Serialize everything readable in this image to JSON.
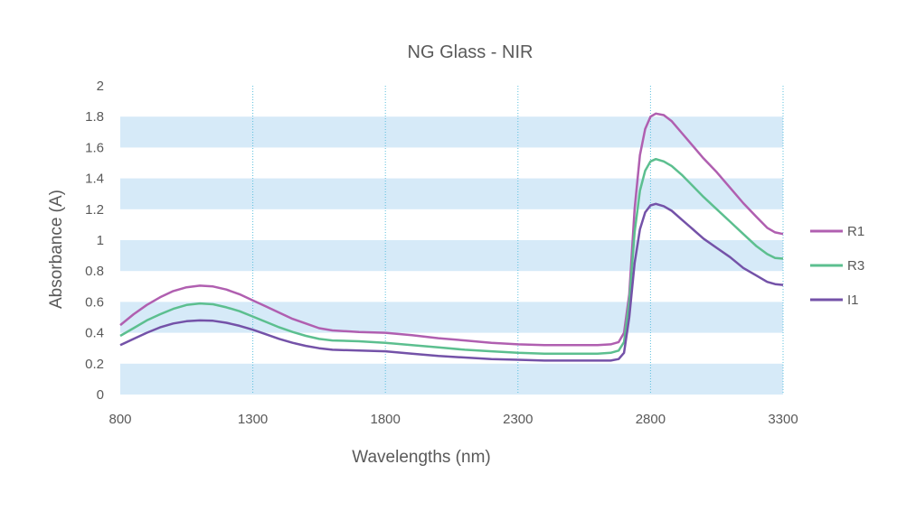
{
  "chart_data": {
    "type": "line",
    "title": "NG Glass - NIR",
    "xlabel": "Wavelengths (nm)",
    "ylabel": "Absorbance (A)",
    "xlim": [
      800,
      3300
    ],
    "ylim": [
      0,
      2
    ],
    "xticks": [
      800,
      1300,
      1800,
      2300,
      2800,
      3300
    ],
    "yticks": [
      "0",
      "0.2",
      "0.4",
      "0.6",
      "0.8",
      "1",
      "1.2",
      "1.4",
      "1.6",
      "1.8",
      "2"
    ],
    "legend_position": "right",
    "background_bands": "alternating light blue horizontal bands",
    "gridlines": "vertical dotted",
    "series": [
      {
        "name": "R1",
        "color": "#b05fb0",
        "points": [
          [
            800,
            0.45
          ],
          [
            850,
            0.52
          ],
          [
            900,
            0.58
          ],
          [
            950,
            0.63
          ],
          [
            1000,
            0.67
          ],
          [
            1050,
            0.695
          ],
          [
            1100,
            0.705
          ],
          [
            1150,
            0.7
          ],
          [
            1200,
            0.68
          ],
          [
            1250,
            0.65
          ],
          [
            1300,
            0.61
          ],
          [
            1350,
            0.57
          ],
          [
            1400,
            0.53
          ],
          [
            1450,
            0.49
          ],
          [
            1500,
            0.46
          ],
          [
            1550,
            0.43
          ],
          [
            1600,
            0.415
          ],
          [
            1700,
            0.405
          ],
          [
            1800,
            0.4
          ],
          [
            1900,
            0.385
          ],
          [
            2000,
            0.365
          ],
          [
            2100,
            0.35
          ],
          [
            2200,
            0.335
          ],
          [
            2300,
            0.325
          ],
          [
            2400,
            0.32
          ],
          [
            2500,
            0.32
          ],
          [
            2600,
            0.32
          ],
          [
            2650,
            0.325
          ],
          [
            2680,
            0.34
          ],
          [
            2700,
            0.4
          ],
          [
            2720,
            0.65
          ],
          [
            2740,
            1.2
          ],
          [
            2760,
            1.55
          ],
          [
            2780,
            1.72
          ],
          [
            2800,
            1.8
          ],
          [
            2820,
            1.82
          ],
          [
            2850,
            1.81
          ],
          [
            2880,
            1.77
          ],
          [
            2920,
            1.69
          ],
          [
            2960,
            1.61
          ],
          [
            3000,
            1.53
          ],
          [
            3050,
            1.44
          ],
          [
            3100,
            1.34
          ],
          [
            3150,
            1.24
          ],
          [
            3200,
            1.15
          ],
          [
            3240,
            1.08
          ],
          [
            3270,
            1.05
          ],
          [
            3300,
            1.04
          ]
        ]
      },
      {
        "name": "R3",
        "color": "#5cbf8f",
        "points": [
          [
            800,
            0.38
          ],
          [
            850,
            0.43
          ],
          [
            900,
            0.48
          ],
          [
            950,
            0.52
          ],
          [
            1000,
            0.555
          ],
          [
            1050,
            0.58
          ],
          [
            1100,
            0.59
          ],
          [
            1150,
            0.585
          ],
          [
            1200,
            0.565
          ],
          [
            1250,
            0.54
          ],
          [
            1300,
            0.505
          ],
          [
            1350,
            0.47
          ],
          [
            1400,
            0.435
          ],
          [
            1450,
            0.405
          ],
          [
            1500,
            0.38
          ],
          [
            1550,
            0.36
          ],
          [
            1600,
            0.35
          ],
          [
            1700,
            0.345
          ],
          [
            1800,
            0.335
          ],
          [
            1900,
            0.32
          ],
          [
            2000,
            0.305
          ],
          [
            2100,
            0.29
          ],
          [
            2200,
            0.28
          ],
          [
            2300,
            0.27
          ],
          [
            2400,
            0.265
          ],
          [
            2500,
            0.265
          ],
          [
            2600,
            0.265
          ],
          [
            2650,
            0.27
          ],
          [
            2680,
            0.285
          ],
          [
            2700,
            0.34
          ],
          [
            2720,
            0.6
          ],
          [
            2740,
            1.05
          ],
          [
            2760,
            1.32
          ],
          [
            2780,
            1.45
          ],
          [
            2800,
            1.51
          ],
          [
            2820,
            1.525
          ],
          [
            2850,
            1.51
          ],
          [
            2880,
            1.48
          ],
          [
            2920,
            1.42
          ],
          [
            2960,
            1.35
          ],
          [
            3000,
            1.28
          ],
          [
            3050,
            1.2
          ],
          [
            3100,
            1.12
          ],
          [
            3150,
            1.04
          ],
          [
            3200,
            0.96
          ],
          [
            3240,
            0.91
          ],
          [
            3270,
            0.885
          ],
          [
            3300,
            0.88
          ]
        ]
      },
      {
        "name": "I1",
        "color": "#7452a8",
        "points": [
          [
            800,
            0.32
          ],
          [
            850,
            0.36
          ],
          [
            900,
            0.4
          ],
          [
            950,
            0.435
          ],
          [
            1000,
            0.46
          ],
          [
            1050,
            0.475
          ],
          [
            1100,
            0.48
          ],
          [
            1150,
            0.478
          ],
          [
            1200,
            0.465
          ],
          [
            1250,
            0.445
          ],
          [
            1300,
            0.42
          ],
          [
            1350,
            0.39
          ],
          [
            1400,
            0.36
          ],
          [
            1450,
            0.335
          ],
          [
            1500,
            0.315
          ],
          [
            1550,
            0.3
          ],
          [
            1600,
            0.29
          ],
          [
            1700,
            0.285
          ],
          [
            1800,
            0.28
          ],
          [
            1900,
            0.265
          ],
          [
            2000,
            0.25
          ],
          [
            2100,
            0.24
          ],
          [
            2200,
            0.23
          ],
          [
            2300,
            0.225
          ],
          [
            2400,
            0.22
          ],
          [
            2500,
            0.22
          ],
          [
            2600,
            0.22
          ],
          [
            2650,
            0.22
          ],
          [
            2680,
            0.23
          ],
          [
            2700,
            0.27
          ],
          [
            2720,
            0.5
          ],
          [
            2740,
            0.85
          ],
          [
            2760,
            1.07
          ],
          [
            2780,
            1.18
          ],
          [
            2800,
            1.225
          ],
          [
            2820,
            1.235
          ],
          [
            2850,
            1.22
          ],
          [
            2880,
            1.19
          ],
          [
            2920,
            1.13
          ],
          [
            2960,
            1.07
          ],
          [
            3000,
            1.01
          ],
          [
            3050,
            0.95
          ],
          [
            3100,
            0.89
          ],
          [
            3150,
            0.82
          ],
          [
            3200,
            0.77
          ],
          [
            3240,
            0.73
          ],
          [
            3270,
            0.715
          ],
          [
            3300,
            0.71
          ]
        ]
      }
    ]
  }
}
